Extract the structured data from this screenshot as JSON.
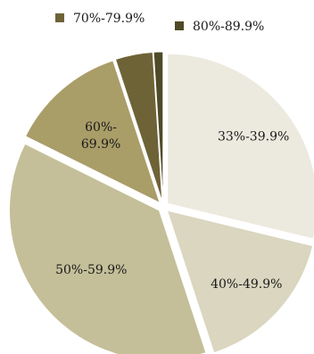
{
  "chart_data": {
    "type": "pie",
    "exploded": true,
    "start_angle_degrees": 0,
    "direction": "clockwise",
    "slices": [
      {
        "label": "33%-39.9%",
        "label_lines": [
          "33%-39.9%"
        ],
        "value": 28.5,
        "color": "#ece9de"
      },
      {
        "label": "40%-49.9%",
        "label_lines": [
          "40%-49.9%"
        ],
        "value": 16.0,
        "color": "#dad6bf"
      },
      {
        "label": "50%-59.9%",
        "label_lines": [
          "50%-59.9%"
        ],
        "value": 37.0,
        "color": "#c4bf99"
      },
      {
        "label": "60%-69.9%",
        "label_lines": [
          "60%-",
          "69.9%"
        ],
        "value": 12.5,
        "color": "#a99d68"
      },
      {
        "label": "70%-79.9%",
        "label_lines": [],
        "value": 4.0,
        "color": "#6e6337"
      },
      {
        "label": "80%-89.9%",
        "label_lines": [],
        "value": 1.0,
        "color": "#4f4a27"
      }
    ],
    "legend": [
      {
        "label": "70%-79.9%",
        "color": "#6e6337"
      },
      {
        "label": "80%-89.9%",
        "color": "#4f4a27"
      }
    ],
    "legend_position": "top"
  }
}
